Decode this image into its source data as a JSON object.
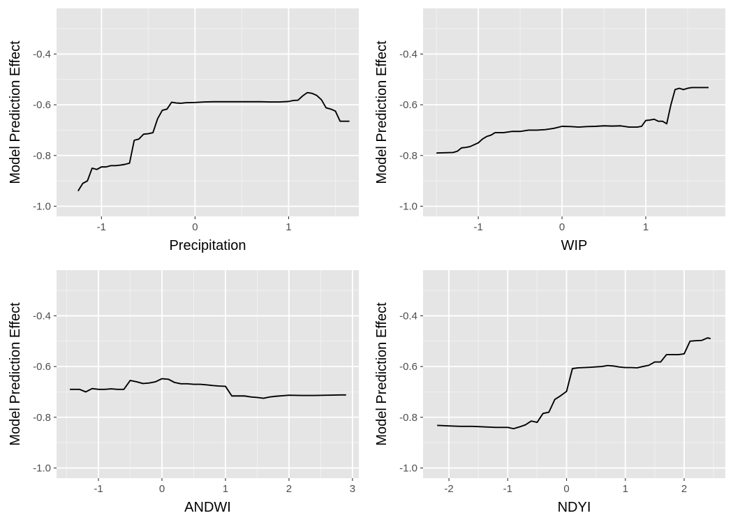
{
  "chart_data": [
    {
      "type": "line",
      "xlabel": "Precipitation",
      "ylabel": "Model Prediction Effect",
      "xlim": [
        -1.48,
        1.75
      ],
      "ylim": [
        -1.04,
        -0.22
      ],
      "xticks": [
        -1,
        0,
        1
      ],
      "xtick_labels": [
        "-1",
        "0",
        "1"
      ],
      "yticks": [
        -1.0,
        -0.8,
        -0.6,
        -0.4
      ],
      "ytick_labels": [
        "-1.0",
        "-0.8",
        "-0.6",
        "-0.4"
      ],
      "grid": true,
      "legend": "none",
      "x": [
        -1.25,
        -1.2,
        -1.15,
        -1.1,
        -1.05,
        -1.0,
        -0.95,
        -0.9,
        -0.85,
        -0.8,
        -0.75,
        -0.7,
        -0.65,
        -0.6,
        -0.55,
        -0.5,
        -0.45,
        -0.4,
        -0.35,
        -0.3,
        -0.25,
        -0.2,
        -0.15,
        -0.1,
        0.0,
        0.1,
        0.2,
        0.3,
        0.4,
        0.5,
        0.6,
        0.7,
        0.8,
        0.9,
        1.0,
        1.05,
        1.1,
        1.15,
        1.2,
        1.25,
        1.3,
        1.35,
        1.4,
        1.45,
        1.5,
        1.55,
        1.6,
        1.65
      ],
      "y": [
        -0.94,
        -0.91,
        -0.9,
        -0.85,
        -0.855,
        -0.845,
        -0.845,
        -0.84,
        -0.84,
        -0.838,
        -0.835,
        -0.83,
        -0.74,
        -0.735,
        -0.716,
        -0.714,
        -0.71,
        -0.655,
        -0.622,
        -0.617,
        -0.59,
        -0.593,
        -0.594,
        -0.592,
        -0.591,
        -0.589,
        -0.588,
        -0.588,
        -0.588,
        -0.588,
        -0.588,
        -0.588,
        -0.589,
        -0.589,
        -0.587,
        -0.583,
        -0.582,
        -0.565,
        -0.552,
        -0.555,
        -0.563,
        -0.58,
        -0.612,
        -0.617,
        -0.625,
        -0.665,
        -0.665,
        -0.665
      ]
    },
    {
      "type": "line",
      "xlabel": "WIP",
      "ylabel": "Model Prediction Effect",
      "xlim": [
        -1.66,
        1.95
      ],
      "ylim": [
        -1.04,
        -0.22
      ],
      "xticks": [
        -1,
        0,
        1
      ],
      "xtick_labels": [
        "-1",
        "0",
        "1"
      ],
      "yticks": [
        -1.0,
        -0.8,
        -0.6,
        -0.4
      ],
      "ytick_labels": [
        "-1.0",
        "-0.8",
        "-0.6",
        "-0.4"
      ],
      "grid": true,
      "legend": "none",
      "x": [
        -1.5,
        -1.4,
        -1.3,
        -1.25,
        -1.2,
        -1.15,
        -1.1,
        -1.0,
        -0.95,
        -0.9,
        -0.85,
        -0.8,
        -0.7,
        -0.6,
        -0.5,
        -0.4,
        -0.3,
        -0.2,
        -0.1,
        0.0,
        0.1,
        0.2,
        0.3,
        0.4,
        0.5,
        0.6,
        0.7,
        0.8,
        0.9,
        0.95,
        1.0,
        1.05,
        1.1,
        1.15,
        1.2,
        1.25,
        1.3,
        1.35,
        1.4,
        1.45,
        1.5,
        1.55,
        1.6,
        1.65,
        1.7,
        1.75
      ],
      "y": [
        -0.79,
        -0.789,
        -0.788,
        -0.783,
        -0.77,
        -0.768,
        -0.765,
        -0.75,
        -0.735,
        -0.725,
        -0.72,
        -0.71,
        -0.71,
        -0.705,
        -0.705,
        -0.7,
        -0.7,
        -0.698,
        -0.693,
        -0.685,
        -0.686,
        -0.688,
        -0.686,
        -0.685,
        -0.683,
        -0.684,
        -0.683,
        -0.688,
        -0.688,
        -0.685,
        -0.662,
        -0.66,
        -0.657,
        -0.665,
        -0.665,
        -0.675,
        -0.6,
        -0.54,
        -0.535,
        -0.54,
        -0.535,
        -0.532,
        -0.532,
        -0.532,
        -0.532,
        -0.532
      ]
    },
    {
      "type": "line",
      "xlabel": "ANDWI",
      "ylabel": "Model Prediction Effect",
      "xlim": [
        -1.66,
        3.1
      ],
      "ylim": [
        -1.04,
        -0.22
      ],
      "xticks": [
        -1,
        0,
        1,
        2,
        3
      ],
      "xtick_labels": [
        "-1",
        "0",
        "1",
        "2",
        "3"
      ],
      "yticks": [
        -1.0,
        -0.8,
        -0.6,
        -0.4
      ],
      "ytick_labels": [
        "-1.0",
        "-0.8",
        "-0.6",
        "-0.4"
      ],
      "grid": true,
      "legend": "none",
      "x": [
        -1.45,
        -1.3,
        -1.2,
        -1.1,
        -1.0,
        -0.9,
        -0.8,
        -0.7,
        -0.6,
        -0.5,
        -0.4,
        -0.3,
        -0.2,
        -0.1,
        0.0,
        0.1,
        0.2,
        0.3,
        0.4,
        0.5,
        0.6,
        0.7,
        0.8,
        0.9,
        1.0,
        1.1,
        1.2,
        1.3,
        1.4,
        1.5,
        1.6,
        1.7,
        1.8,
        1.9,
        2.0,
        2.2,
        2.4,
        2.6,
        2.8,
        2.9
      ],
      "y": [
        -0.69,
        -0.69,
        -0.7,
        -0.687,
        -0.69,
        -0.69,
        -0.688,
        -0.69,
        -0.69,
        -0.655,
        -0.66,
        -0.667,
        -0.665,
        -0.66,
        -0.648,
        -0.65,
        -0.663,
        -0.668,
        -0.668,
        -0.67,
        -0.67,
        -0.672,
        -0.675,
        -0.677,
        -0.678,
        -0.716,
        -0.716,
        -0.716,
        -0.72,
        -0.722,
        -0.725,
        -0.72,
        -0.717,
        -0.715,
        -0.713,
        -0.714,
        -0.714,
        -0.713,
        -0.712,
        -0.712
      ]
    },
    {
      "type": "line",
      "xlabel": "NDYI",
      "ylabel": "Model Prediction Effect",
      "xlim": [
        -2.44,
        2.7
      ],
      "ylim": [
        -1.04,
        -0.22
      ],
      "xticks": [
        -2,
        -1,
        0,
        1,
        2
      ],
      "xtick_labels": [
        "-2",
        "-1",
        "0",
        "1",
        "2"
      ],
      "yticks": [
        -1.0,
        -0.8,
        -0.6,
        -0.4
      ],
      "ytick_labels": [
        "-1.0",
        "-0.8",
        "-0.6",
        "-0.4"
      ],
      "grid": true,
      "legend": "none",
      "x": [
        -2.2,
        -2.0,
        -1.8,
        -1.6,
        -1.4,
        -1.2,
        -1.1,
        -1.0,
        -0.9,
        -0.8,
        -0.7,
        -0.6,
        -0.5,
        -0.4,
        -0.3,
        -0.2,
        -0.1,
        0.0,
        0.1,
        0.2,
        0.4,
        0.6,
        0.7,
        0.8,
        0.9,
        1.0,
        1.1,
        1.2,
        1.3,
        1.4,
        1.5,
        1.6,
        1.7,
        1.8,
        1.9,
        2.0,
        2.1,
        2.2,
        2.3,
        2.4,
        2.45
      ],
      "y": [
        -0.832,
        -0.834,
        -0.836,
        -0.836,
        -0.838,
        -0.84,
        -0.84,
        -0.84,
        -0.845,
        -0.838,
        -0.83,
        -0.815,
        -0.82,
        -0.785,
        -0.78,
        -0.73,
        -0.715,
        -0.698,
        -0.608,
        -0.605,
        -0.603,
        -0.6,
        -0.596,
        -0.598,
        -0.602,
        -0.604,
        -0.604,
        -0.605,
        -0.6,
        -0.595,
        -0.582,
        -0.582,
        -0.553,
        -0.553,
        -0.553,
        -0.55,
        -0.5,
        -0.498,
        -0.497,
        -0.487,
        -0.49
      ]
    }
  ]
}
